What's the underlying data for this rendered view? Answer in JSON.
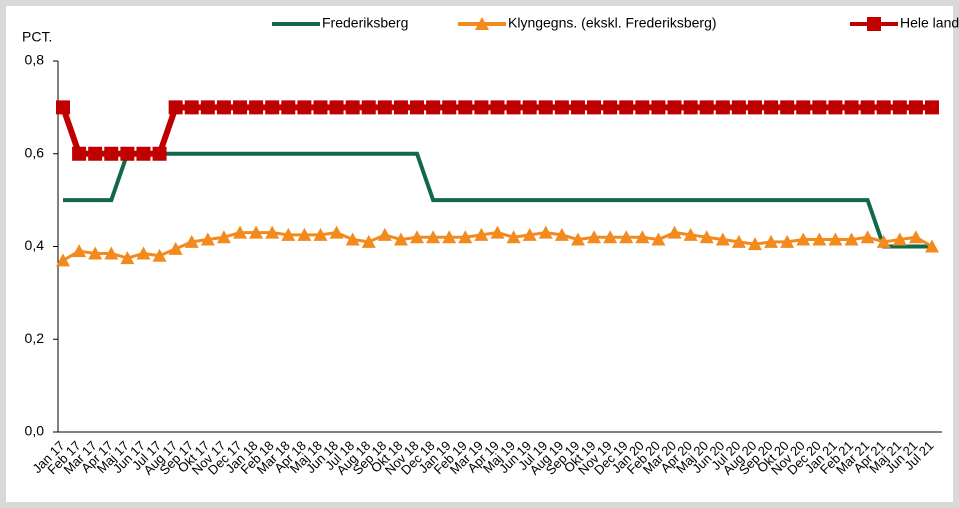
{
  "chart_data": {
    "type": "line",
    "y_label": "PCT.",
    "categories": [
      "Jan 17",
      "Feb 17",
      "Mar 17",
      "Apr 17",
      "Maj 17",
      "Jun 17",
      "Jul 17",
      "Aug 17",
      "Sep 17",
      "Okt 17",
      "Nov 17",
      "Dec 17",
      "Jan 18",
      "Feb 18",
      "Mar 18",
      "Apr 18",
      "Maj 18",
      "Jun 18",
      "Jul 18",
      "Aug 18",
      "Sep 18",
      "Okt 18",
      "Nov 18",
      "Dec 18",
      "Jan 19",
      "Feb 19",
      "Mar 19",
      "Apr 19",
      "Maj 19",
      "Jun 19",
      "Jul 19",
      "Aug 19",
      "Sep 19",
      "Okt 19",
      "Nov 19",
      "Dec 19",
      "Jan 20",
      "Feb 20",
      "Mar 20",
      "Apr 20",
      "Maj 20",
      "Jun 20",
      "Jul 20",
      "Aug 20",
      "Sep 20",
      "Okt 20",
      "Nov 20",
      "Dec 20",
      "Jan 21",
      "Feb 21",
      "Mar 21",
      "Apr 21",
      "Maj 21",
      "Jun 21",
      "Jul 21"
    ],
    "series": [
      {
        "name": "Frederiksberg",
        "color": "#12694a",
        "marker": "none",
        "values": [
          0.5,
          0.5,
          0.5,
          0.5,
          0.6,
          0.6,
          0.6,
          0.6,
          0.6,
          0.6,
          0.6,
          0.6,
          0.6,
          0.6,
          0.6,
          0.6,
          0.6,
          0.6,
          0.6,
          0.6,
          0.6,
          0.6,
          0.6,
          0.5,
          0.5,
          0.5,
          0.5,
          0.5,
          0.5,
          0.5,
          0.5,
          0.5,
          0.5,
          0.5,
          0.5,
          0.5,
          0.5,
          0.5,
          0.5,
          0.5,
          0.5,
          0.5,
          0.5,
          0.5,
          0.5,
          0.5,
          0.5,
          0.5,
          0.5,
          0.5,
          0.5,
          0.4,
          0.4,
          0.4,
          0.4
        ]
      },
      {
        "name": "Klyngegns. (ekskl. Frederiksberg)",
        "color": "#f28a1e",
        "marker": "triangle",
        "values": [
          0.37,
          0.39,
          0.385,
          0.385,
          0.375,
          0.385,
          0.38,
          0.395,
          0.41,
          0.415,
          0.42,
          0.43,
          0.43,
          0.43,
          0.425,
          0.425,
          0.425,
          0.43,
          0.415,
          0.41,
          0.425,
          0.415,
          0.42,
          0.42,
          0.42,
          0.42,
          0.425,
          0.43,
          0.42,
          0.425,
          0.43,
          0.425,
          0.415,
          0.42,
          0.42,
          0.42,
          0.42,
          0.415,
          0.43,
          0.425,
          0.42,
          0.415,
          0.41,
          0.405,
          0.41,
          0.41,
          0.415,
          0.415,
          0.415,
          0.415,
          0.42,
          0.41,
          0.415,
          0.42,
          0.4
        ]
      },
      {
        "name": "Hele landet",
        "color": "#c00000",
        "marker": "square",
        "values": [
          0.7,
          0.6,
          0.6,
          0.6,
          0.6,
          0.6,
          0.6,
          0.7,
          0.7,
          0.7,
          0.7,
          0.7,
          0.7,
          0.7,
          0.7,
          0.7,
          0.7,
          0.7,
          0.7,
          0.7,
          0.7,
          0.7,
          0.7,
          0.7,
          0.7,
          0.7,
          0.7,
          0.7,
          0.7,
          0.7,
          0.7,
          0.7,
          0.7,
          0.7,
          0.7,
          0.7,
          0.7,
          0.7,
          0.7,
          0.7,
          0.7,
          0.7,
          0.7,
          0.7,
          0.7,
          0.7,
          0.7,
          0.7,
          0.7,
          0.7,
          0.7,
          0.7,
          0.7,
          0.7,
          0.7
        ]
      }
    ],
    "ylim": [
      0,
      0.8
    ],
    "yticks": [
      {
        "value": 0,
        "label": "0,0"
      },
      {
        "value": 0.2,
        "label": "0,2"
      },
      {
        "value": 0.4,
        "label": "0,4"
      },
      {
        "value": 0.6,
        "label": "0,6"
      },
      {
        "value": 0.8,
        "label": "0,8"
      }
    ],
    "grid": false,
    "legend": "top"
  }
}
